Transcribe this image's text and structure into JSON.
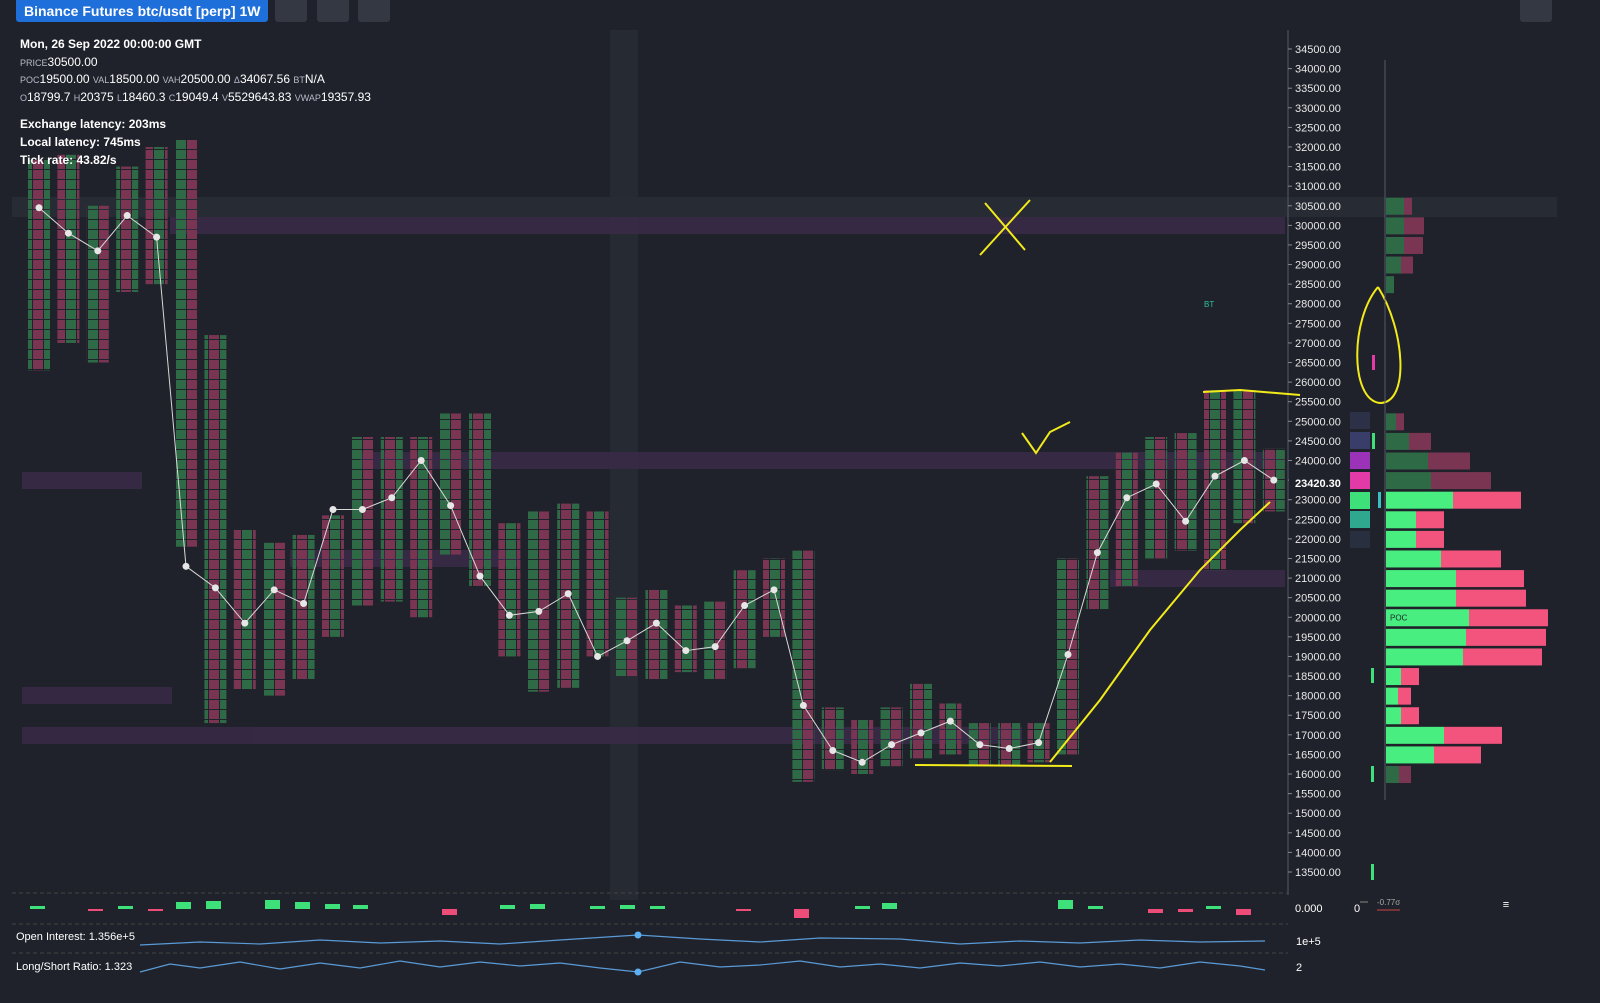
{
  "header": {
    "title": "Binance Futures btc/usdt [perp] 1W"
  },
  "info": {
    "date": "Mon, 26 Sep 2022 00:00:00 GMT",
    "price": [
      {
        "key": "PRICE",
        "value": "30500.00"
      }
    ],
    "levels": [
      {
        "key": "POC",
        "value": "19500.00"
      },
      {
        "key": "VAL",
        "value": "18500.00"
      },
      {
        "key": "VAH",
        "value": "20500.00"
      },
      {
        "key": "Δ",
        "value": "34067.56"
      },
      {
        "key": "BT",
        "value": "N/A"
      }
    ],
    "ohlc": [
      {
        "key": "O",
        "value": "18799.7"
      },
      {
        "key": "H",
        "value": "20375"
      },
      {
        "key": "L",
        "value": "18460.3"
      },
      {
        "key": "C",
        "value": "19049.4"
      },
      {
        "key": "V",
        "value": "5529643.83"
      },
      {
        "key": "VWAP",
        "value": "19357.93"
      }
    ],
    "stats": [
      "Exchange latency: 203ms",
      "Local latency: 745ms",
      "Tick rate: 43.82/s"
    ]
  },
  "price_chart": {
    "ylim": [
      13500,
      34500
    ],
    "yticks": [
      {
        "value": 34500,
        "label": "34500.00"
      },
      {
        "value": 34000,
        "label": "34000.00"
      },
      {
        "value": 33500,
        "label": "33500.00"
      },
      {
        "value": 33000,
        "label": "33000.00"
      },
      {
        "value": 32500,
        "label": "32500.00"
      },
      {
        "value": 32000,
        "label": "32000.00"
      },
      {
        "value": 31500,
        "label": "31500.00"
      },
      {
        "value": 31000,
        "label": "31000.00"
      },
      {
        "value": 30500,
        "label": "30500.00"
      },
      {
        "value": 30000,
        "label": "30000.00"
      },
      {
        "value": 29500,
        "label": "29500.00"
      },
      {
        "value": 29000,
        "label": "29000.00"
      },
      {
        "value": 28500,
        "label": "28500.00"
      },
      {
        "value": 28000,
        "label": "28000.00"
      },
      {
        "value": 27500,
        "label": "27500.00"
      },
      {
        "value": 27000,
        "label": "27000.00"
      },
      {
        "value": 26500,
        "label": "26500.00"
      },
      {
        "value": 26000,
        "label": "26000.00"
      },
      {
        "value": 25500,
        "label": "25500.00"
      },
      {
        "value": 25000,
        "label": "25000.00"
      },
      {
        "value": 24500,
        "label": "24500.00"
      },
      {
        "value": 24000,
        "label": "24000.00"
      },
      {
        "value": 23500,
        "label": "23500.00"
      },
      {
        "value": 23000,
        "label": "23000.00"
      },
      {
        "value": 22500,
        "label": "22500.00"
      },
      {
        "value": 22000,
        "label": "22000.00"
      },
      {
        "value": 21500,
        "label": "21500.00"
      },
      {
        "value": 21000,
        "label": "21000.00"
      },
      {
        "value": 20500,
        "label": "20500.00"
      },
      {
        "value": 20000,
        "label": "20000.00"
      },
      {
        "value": 19500,
        "label": "19500.00"
      },
      {
        "value": 19000,
        "label": "19000.00"
      },
      {
        "value": 18500,
        "label": "18500.00"
      },
      {
        "value": 18000,
        "label": "18000.00"
      },
      {
        "value": 17500,
        "label": "17500.00"
      },
      {
        "value": 17000,
        "label": "17000.00"
      },
      {
        "value": 16500,
        "label": "16500.00"
      },
      {
        "value": 16000,
        "label": "16000.00"
      },
      {
        "value": 15500,
        "label": "15500.00"
      },
      {
        "value": 15000,
        "label": "15000.00"
      },
      {
        "value": 14500,
        "label": "14500.00"
      },
      {
        "value": 14000,
        "label": "14000.00"
      },
      {
        "value": 13500,
        "label": "13500.00"
      }
    ],
    "current_price": {
      "value": 23420.3,
      "label": "23420.30"
    },
    "columns": [
      [
        26300,
        31700
      ],
      [
        27000,
        31800
      ],
      [
        26500,
        30500
      ],
      [
        28300,
        31500
      ],
      [
        28500,
        32000
      ],
      [
        21800,
        32200
      ],
      [
        17300,
        27200
      ],
      [
        18150,
        22230
      ],
      [
        18000,
        21900
      ],
      [
        18400,
        22100
      ],
      [
        19500,
        22600
      ],
      [
        20300,
        24600
      ],
      [
        20400,
        24600
      ],
      [
        20000,
        24600
      ],
      [
        21600,
        25200
      ],
      [
        20800,
        25200
      ],
      [
        19000,
        22400
      ],
      [
        18100,
        22700
      ],
      [
        18200,
        22900
      ],
      [
        19000,
        22700
      ],
      [
        18500,
        20500
      ],
      [
        18400,
        20700
      ],
      [
        18600,
        20300
      ],
      [
        18400,
        20400
      ],
      [
        18700,
        21200
      ],
      [
        19500,
        21500
      ],
      [
        15800,
        21700
      ],
      [
        16100,
        17700
      ],
      [
        16000,
        17400
      ],
      [
        16200,
        17700
      ],
      [
        16400,
        18300
      ],
      [
        16500,
        17800
      ],
      [
        16200,
        17300
      ],
      [
        16200,
        17300
      ],
      [
        16300,
        17300
      ],
      [
        16500,
        21500
      ],
      [
        20200,
        23600
      ],
      [
        20800,
        24200
      ],
      [
        21500,
        24600
      ],
      [
        21700,
        24700
      ],
      [
        21200,
        25800
      ],
      [
        22400,
        25800
      ],
      [
        22700,
        24300
      ]
    ],
    "line": [
      30450,
      29800,
      29350,
      30250,
      29700,
      21300,
      20750,
      19850,
      20700,
      20350,
      22750,
      22750,
      23050,
      24000,
      22850,
      21050,
      20050,
      20150,
      20600,
      19000,
      19400,
      19850,
      19150,
      19250,
      20300,
      20700,
      17750,
      16600,
      16300,
      16750,
      17050,
      17350,
      16750,
      16650,
      16800,
      19050,
      21650,
      23050,
      23400,
      22450,
      23600,
      24000,
      23500
    ],
    "bt_label": "BT"
  },
  "volume_profile": {
    "poc_label": "POC",
    "rows": [
      {
        "price": 30500,
        "buy": 18,
        "sell": 8,
        "dim": true
      },
      {
        "price": 30000,
        "buy": 18,
        "sell": 20,
        "dim": true
      },
      {
        "price": 29500,
        "buy": 18,
        "sell": 19,
        "dim": true
      },
      {
        "price": 29000,
        "buy": 15,
        "sell": 12,
        "dim": true
      },
      {
        "price": 28500,
        "buy": 8,
        "sell": 0,
        "dim": true
      },
      {
        "price": 25000,
        "buy": 10,
        "sell": 8,
        "dim": true
      },
      {
        "price": 24500,
        "buy": 23,
        "sell": 22,
        "dim": true
      },
      {
        "price": 24000,
        "buy": 42,
        "sell": 42,
        "dim": true
      },
      {
        "price": 23500,
        "buy": 45,
        "sell": 60,
        "dim": true
      },
      {
        "price": 23000,
        "buy": 67,
        "sell": 68,
        "dim": false
      },
      {
        "price": 22500,
        "buy": 30,
        "sell": 28,
        "dim": false
      },
      {
        "price": 22000,
        "buy": 30,
        "sell": 28,
        "dim": false
      },
      {
        "price": 21500,
        "buy": 55,
        "sell": 60,
        "dim": false
      },
      {
        "price": 21000,
        "buy": 70,
        "sell": 68,
        "dim": false
      },
      {
        "price": 20500,
        "buy": 70,
        "sell": 70,
        "dim": false
      },
      {
        "price": 20000,
        "buy": 83,
        "sell": 79,
        "dim": false
      },
      {
        "price": 19500,
        "buy": 80,
        "sell": 80,
        "dim": false
      },
      {
        "price": 19000,
        "buy": 77,
        "sell": 79,
        "dim": false
      },
      {
        "price": 18500,
        "buy": 15,
        "sell": 18,
        "dim": false
      },
      {
        "price": 18000,
        "buy": 12,
        "sell": 13,
        "dim": false
      },
      {
        "price": 17500,
        "buy": 15,
        "sell": 18,
        "dim": false
      },
      {
        "price": 17000,
        "buy": 58,
        "sell": 58,
        "dim": false
      },
      {
        "price": 16500,
        "buy": 48,
        "sell": 47,
        "dim": false
      },
      {
        "price": 16000,
        "buy": 13,
        "sell": 12,
        "dim": true
      }
    ]
  },
  "indicators": {
    "delta_axis": "0.000",
    "open_interest": "Open Interest: 1.356e+5",
    "oi_axis": "1e+5",
    "long_short": "Long/Short Ratio: 1.323",
    "ls_axis": "2",
    "profile_zero": "0",
    "sigma": "-0.77σ"
  }
}
